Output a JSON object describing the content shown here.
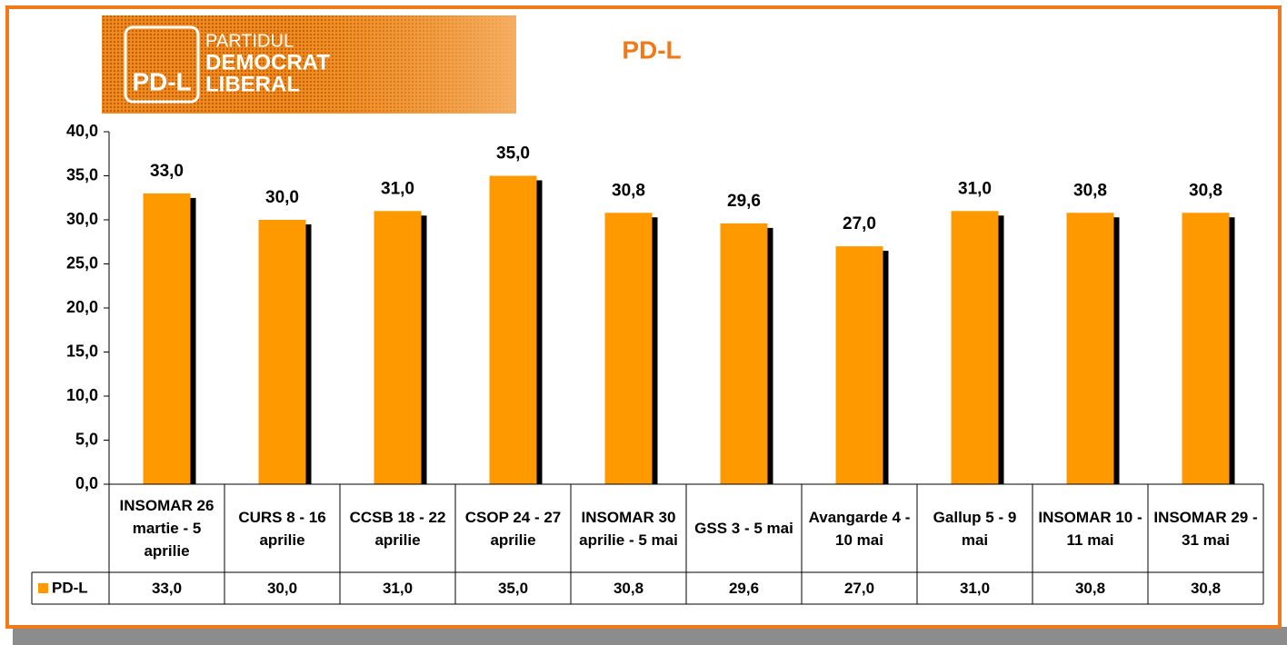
{
  "logo": {
    "badge": "PD-L",
    "line1": "PARTIDUL",
    "line2": "DEMOCRAT",
    "line3": "LIBERAL"
  },
  "chart_data": {
    "type": "bar",
    "title": "PD-L",
    "categories": [
      "INSOMAR 26 martie - 5 aprilie",
      "CURS 8 - 16 aprilie",
      "CCSB 18 - 22 aprilie",
      "CSOP 24 - 27 aprilie",
      "INSOMAR 30 aprilie - 5 mai",
      "GSS 3 - 5 mai",
      "Avangarde 4 - 10 mai",
      "Gallup 5 - 9 mai",
      "INSOMAR 10 - 11 mai",
      "INSOMAR 29 - 31 mai"
    ],
    "series": [
      {
        "name": "PD-L",
        "color": "#ff9900",
        "values": [
          33.0,
          30.0,
          31.0,
          35.0,
          30.8,
          29.6,
          27.0,
          31.0,
          30.8,
          30.8
        ],
        "value_labels": [
          "33,0",
          "30,0",
          "31,0",
          "35,0",
          "30,8",
          "29,6",
          "27,0",
          "31,0",
          "30,8",
          "30,8"
        ]
      }
    ],
    "ylim": [
      0,
      40
    ],
    "yticks": [
      {
        "value": 0,
        "label": "0,0"
      },
      {
        "value": 5,
        "label": "5,0"
      },
      {
        "value": 10,
        "label": "10,0"
      },
      {
        "value": 15,
        "label": "15,0"
      },
      {
        "value": 20,
        "label": "20,0"
      },
      {
        "value": 25,
        "label": "25,0"
      },
      {
        "value": 30,
        "label": "30,0"
      },
      {
        "value": 35,
        "label": "35,0"
      },
      {
        "value": 40,
        "label": "40,0"
      }
    ],
    "grid": false,
    "data_table": true
  }
}
